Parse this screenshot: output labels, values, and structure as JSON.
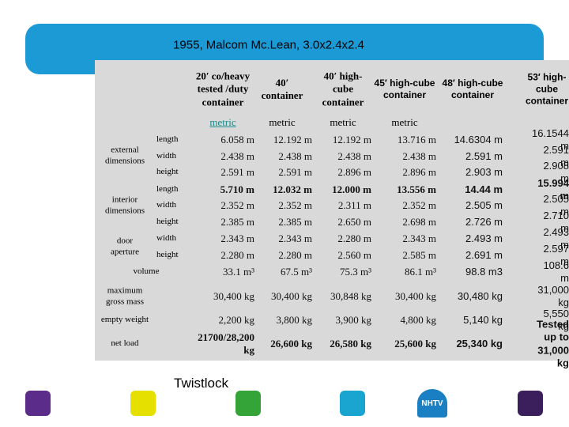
{
  "header": {
    "title": "1955, Malcom Mc.Lean, 3.0x2.4x2.4"
  },
  "table": {
    "columns": [
      "20′ co/heavy\ntested /duty\ncontainer",
      "40′\ncontainer",
      "40′ high-\ncube\ncontainer",
      "45′ high-cube\ncontainer",
      "48′ high-cube\ncontainer",
      "53′ high-cube\ncontainer"
    ],
    "units": [
      "metric",
      "metric",
      "metric",
      "metric"
    ],
    "rows": [
      {
        "group": "external\ndimensions",
        "label": "length",
        "cells": [
          "6.058 m",
          "12.192 m",
          "12.192 m",
          "13.716 m",
          "14.6304 m",
          "16.1544 m"
        ]
      },
      {
        "label": "width",
        "cells": [
          "2.438 m",
          "2.438 m",
          "2.438 m",
          "2.438 m",
          "2.591 m",
          "2.591 m"
        ]
      },
      {
        "label": "height",
        "cells": [
          "2.591 m",
          "2.591 m",
          "2.896 m",
          "2.896 m",
          "2.903 m",
          "2.908 m"
        ]
      },
      {
        "group": "interior\ndimensions",
        "label": "length",
        "cells": [
          "5.710 m",
          "12.032 m",
          "12.000 m",
          "13.556 m",
          "14.44 m",
          "15.994 m"
        ]
      },
      {
        "label": "width",
        "cells": [
          "2.352 m",
          "2.352 m",
          "2.311 m",
          "2.352 m",
          "2.505 m",
          "2.505 m"
        ]
      },
      {
        "label": "height",
        "cells": [
          "2.385 m",
          "2.385 m",
          "2.650 m",
          "2.698 m",
          "2.726 m",
          "2.710 m"
        ]
      },
      {
        "group": "door\naperture",
        "label": "width",
        "cells": [
          "2.343 m",
          "2.343 m",
          "2.280 m",
          "2.343 m",
          "2.493 m",
          "2.493 m"
        ]
      },
      {
        "label": "height",
        "cells": [
          "2.280 m",
          "2.280 m",
          "2.560 m",
          "2.585 m",
          "2.691 m",
          "2.597 m"
        ]
      },
      {
        "group": "volume",
        "cells": [
          "33.1 m³",
          "67.5 m³",
          "75.3 m³",
          "86.1 m³",
          "98.8 m3",
          "108.6 m"
        ]
      },
      {
        "group": "maximum\ngross mass",
        "cells": [
          "30,400 kg",
          "30,400 kg",
          "30,848 kg",
          "30,400 kg",
          "30,480 kg",
          "31,000 kg"
        ]
      },
      {
        "group": "empty weight",
        "cells": [
          "2,200 kg",
          "3,800 kg",
          "3,900 kg",
          "4,800 kg",
          "5,140 kg",
          "5,550 kg"
        ]
      },
      {
        "group": "net load",
        "cells": [
          "21700/28,200\nkg",
          "26,600 kg",
          "26,580 kg",
          "25,600 kg",
          "25,340 kg",
          "Tested up to\n31,000 kg"
        ]
      }
    ]
  },
  "footer": {
    "caption": "Twistlock",
    "logo": "NHTV"
  }
}
